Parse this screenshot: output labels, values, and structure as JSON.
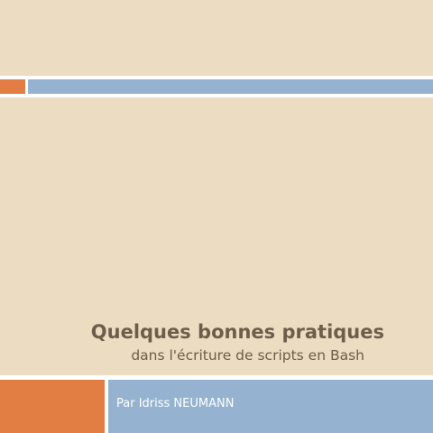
{
  "slide": {
    "title": "Quelques bonnes pratiques",
    "subtitle": "dans l'écriture de scripts en Bash",
    "author": "Par Idriss NEUMANN"
  },
  "colors": {
    "background": "#ebdcc2",
    "band": "#ffffff",
    "accent_orange": "#e27d43",
    "accent_blue": "#95b3d1",
    "title_text": "#6d5d4a",
    "author_text": "#ffffff"
  }
}
